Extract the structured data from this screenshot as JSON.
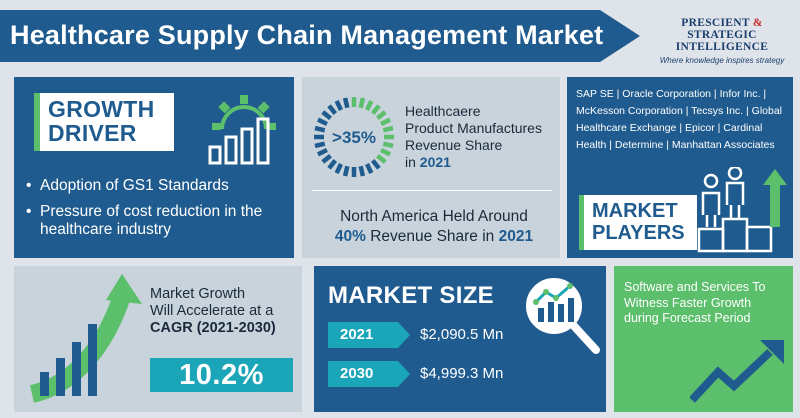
{
  "header": {
    "title": "Healthcare Supply Chain Management Market",
    "logo_line1": "PRESCIENT",
    "logo_amp": "&",
    "logo_line1b": "STRATEGIC",
    "logo_line2": "INTELLIGENCE",
    "logo_tagline": "Where knowledge inspires strategy"
  },
  "growth_driver": {
    "label_line1": "GROWTH",
    "label_line2": "DRIVER",
    "items": [
      "Adoption of GS1 Standards",
      "Pressure of cost reduction in the healthcare industry"
    ]
  },
  "revenue_share": {
    "ring_value": ">35%",
    "line1": "Healthcaere",
    "line2": "Product Manufactures",
    "line3": "Revenue Share",
    "line4_prefix": "in",
    "line4_year": "2021",
    "na_line1": "North America Held Around",
    "na_percent": "40%",
    "na_mid": "Revenue Share in",
    "na_year": "2021"
  },
  "market_players": {
    "list_text": "SAP SE | Oracle Corporation | Infor Inc. | McKesson Corporation | Tecsys Inc. | Global Healthcare Exchange | Epicor | Cardinal Health | Determine | Manhattan Associates",
    "label_line1": "MARKET",
    "label_line2": "PLAYERS"
  },
  "cagr": {
    "line1": "Market Growth",
    "line2": "Will Accelerate at a",
    "line3": "CAGR (2021-2030)",
    "value": "10.2%"
  },
  "market_size": {
    "title": "MARKET SIZE",
    "rows": [
      {
        "year": "2021",
        "value": "$2,090.5 Mn"
      },
      {
        "year": "2030",
        "value": "$4,999.3 Mn"
      }
    ]
  },
  "software": {
    "text": "Software and Services To Witness Faster Growth during Forecast Period"
  },
  "colors": {
    "primary_blue": "#1f5b8e",
    "teal": "#1aa5b8",
    "green": "#5cbf6b",
    "light_panel": "#c8d3dc",
    "logo_red": "#c8282b"
  },
  "icons": [
    "gear-chart-icon",
    "donut-ring-icon",
    "podium-people-icon",
    "growth-bars-arrow-icon",
    "magnifier-chart-icon",
    "trend-arrow-icon"
  ]
}
